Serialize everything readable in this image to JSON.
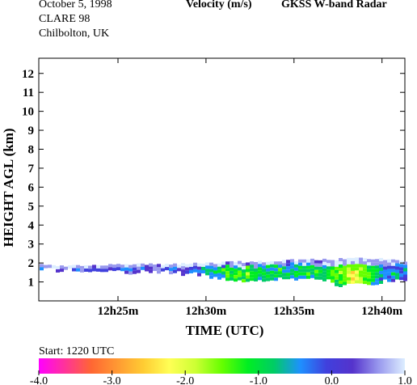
{
  "header": {
    "date": "October   5, 1998",
    "campaign": "CLARE 98",
    "location": "Chilbolton, UK",
    "quantity": "Velocity (m/s)",
    "instrument": "GKSS  W-band Radar"
  },
  "colorbar": {
    "start_label": "Start:  1220 UTC",
    "ticks": [
      "-4.0",
      "-3.0",
      "-2.0",
      "-1.0",
      "0.0",
      "1.0"
    ],
    "colors": [
      "#ff00ff",
      "#ff3399",
      "#ff6633",
      "#ff9933",
      "#ffcc33",
      "#ffff55",
      "#ccff33",
      "#66ff00",
      "#00ee22",
      "#00cc66",
      "#1e90ff",
      "#4040dd",
      "#5533cc",
      "#9999ee",
      "#ddeeff"
    ]
  },
  "chart_data": {
    "type": "heatmap",
    "title": "Velocity (m/s)",
    "xlabel": "TIME (UTC)",
    "ylabel": "HEIGHT AGL (km)",
    "x_start_min": 20.5,
    "x_end_min": 41.3,
    "xlim_label": [
      "12h20m30s",
      "12h41m18s"
    ],
    "ylim": [
      0,
      12.8
    ],
    "x_ticks": [
      {
        "minute": 25,
        "label": "12h25m"
      },
      {
        "minute": 30,
        "label": "12h30m"
      },
      {
        "minute": 35,
        "label": "12h35m"
      },
      {
        "minute": 40,
        "label": "12h40m"
      }
    ],
    "y_ticks": [
      1,
      2,
      3,
      4,
      5,
      6,
      7,
      8,
      9,
      10,
      11,
      12
    ],
    "color_scale": {
      "min": -4.0,
      "max": 1.0
    },
    "cloud_layer": {
      "description_units": "km",
      "base_km_approx": [
        1.2,
        1.7
      ],
      "top_km_approx": [
        1.9,
        2.3
      ]
    },
    "cloud_columns": [
      {
        "minute": 20.6,
        "base": 1.7,
        "top": 1.9,
        "v": 0.0
      },
      {
        "minute": 21.5,
        "base": 1.7,
        "top": 1.85,
        "v": 0.1
      },
      {
        "minute": 22.5,
        "base": 1.7,
        "top": 1.85,
        "v": 0.0
      },
      {
        "minute": 23.5,
        "base": 1.65,
        "top": 1.85,
        "v": 0.2
      },
      {
        "minute": 24.5,
        "base": 1.65,
        "top": 1.9,
        "v": 0.1
      },
      {
        "minute": 25.5,
        "base": 1.6,
        "top": 1.9,
        "v": 0.0
      },
      {
        "minute": 26.5,
        "base": 1.6,
        "top": 1.95,
        "v": 0.3
      },
      {
        "minute": 27.5,
        "base": 1.6,
        "top": 1.95,
        "v": 0.2
      },
      {
        "minute": 28.5,
        "base": 1.55,
        "top": 1.95,
        "v": 0.0
      },
      {
        "minute": 29.5,
        "base": 1.5,
        "top": 2.0,
        "v": -0.3
      },
      {
        "minute": 30.5,
        "base": 1.2,
        "top": 2.0,
        "v": -0.6
      },
      {
        "minute": 31.5,
        "base": 1.1,
        "top": 2.05,
        "v": -0.9
      },
      {
        "minute": 32.5,
        "base": 1.1,
        "top": 2.05,
        "v": -1.1
      },
      {
        "minute": 33.5,
        "base": 1.2,
        "top": 2.1,
        "v": -0.9
      },
      {
        "minute": 34.5,
        "base": 1.3,
        "top": 2.15,
        "v": -0.6
      },
      {
        "minute": 35.5,
        "base": 1.2,
        "top": 2.15,
        "v": -0.8
      },
      {
        "minute": 36.5,
        "base": 1.2,
        "top": 2.2,
        "v": -0.9
      },
      {
        "minute": 37.5,
        "base": 0.9,
        "top": 2.2,
        "v": -1.2
      },
      {
        "minute": 38.3,
        "base": 0.9,
        "top": 2.25,
        "v": -1.9
      },
      {
        "minute": 39.2,
        "base": 1.0,
        "top": 2.25,
        "v": -1.0
      },
      {
        "minute": 40.2,
        "base": 1.1,
        "top": 2.2,
        "v": -0.5
      },
      {
        "minute": 41.0,
        "base": 1.2,
        "top": 2.1,
        "v": -0.3
      }
    ]
  }
}
